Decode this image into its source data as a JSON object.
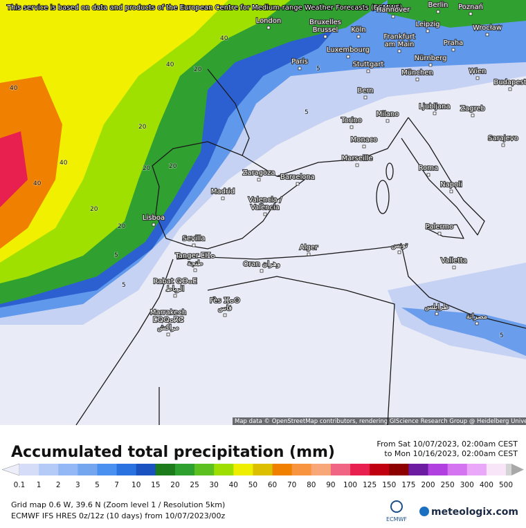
{
  "notice": "This service is based on data and products of the European Centre for Medium-range Weather Forecasts (ECMWF)",
  "attribution": "Map data © OpenStreetMap contributors, rendering GIScience Research Group @ Heidelberg University",
  "cities": [
    [
      "London"
    ],
    [
      "Bruxelles",
      "Brussel"
    ],
    [
      "Hannover"
    ],
    [
      "Berlin"
    ],
    [
      "Poznań"
    ],
    [
      "Köln"
    ],
    [
      "Leipzig"
    ],
    [
      "Wrocław"
    ],
    [
      "Frankfurt",
      "am Main"
    ],
    [
      "Praha"
    ],
    [
      "Luxembourg"
    ],
    [
      "Paris"
    ],
    [
      "Stuttgart"
    ],
    [
      "Nürnberg"
    ],
    [
      "München"
    ],
    [
      "Wien"
    ],
    [
      "Budapest"
    ],
    [
      "Bern"
    ],
    [
      "Milano"
    ],
    [
      "Ljubljana"
    ],
    [
      "Zagreb"
    ],
    [
      "Torino"
    ],
    [
      "Monaco"
    ],
    [
      "Sarajevo"
    ],
    [
      "Marseille"
    ],
    [
      "Zaragoza"
    ],
    [
      "Barcelona"
    ],
    [
      "Roma"
    ],
    [
      "Napoli"
    ],
    [
      "Madrid"
    ],
    [
      "Valencia /",
      "València"
    ],
    [
      "Lisboa"
    ],
    [
      "Palermo"
    ],
    [
      "Sevilla"
    ],
    [
      "Tanger ⵟⵏⵊⴰ",
      "طنجة"
    ],
    [
      "Oran وهران"
    ],
    [
      "Alger"
    ],
    [
      "تونس"
    ],
    [
      "Valletta"
    ],
    [
      "Rabat ⵕⴱⴰⵟ",
      "الرباط"
    ],
    [
      "Fès ⴼⴰⵙ",
      "فاس"
    ],
    [
      "Marrakech",
      "ⵎⵕⵕⴰⴽⵛ",
      "مراكش"
    ],
    [
      "طرابلس"
    ],
    [
      "مصراتة"
    ]
  ],
  "contour_labels": [
    "40",
    "20",
    "40",
    "5",
    "40",
    "20",
    "20",
    "40",
    "20",
    "5",
    "20",
    "40",
    "5",
    "20",
    "5",
    "5"
  ],
  "title": "Accumulated total precipitation (mm)",
  "period": {
    "from": "From Sat 10/07/2023, 02:00am CEST",
    "to": "to Mon 10/16/2023, 02:00am CEST"
  },
  "legend": {
    "ticks": [
      0.1,
      1,
      2,
      3,
      5,
      7,
      10,
      15,
      20,
      25,
      30,
      40,
      50,
      60,
      70,
      80,
      90,
      100,
      125,
      150,
      175,
      200,
      250,
      300,
      400,
      500
    ],
    "colors": [
      "#eceef9",
      "#d4dcf8",
      "#b4cbf8",
      "#94b8f6",
      "#74a6f0",
      "#4a90f0",
      "#2a72e0",
      "#1a52c0",
      "#1c7c1c",
      "#2ea02e",
      "#5cc020",
      "#9ede00",
      "#eeee00",
      "#dcc000",
      "#f08000",
      "#f89440",
      "#f8a878",
      "#f06484",
      "#e82050",
      "#c00010",
      "#8c0000",
      "#6c1ca0",
      "#b040e0",
      "#d474f0",
      "#eaa8f8",
      "#f8e6f8",
      "#d4d4d4",
      "#a8a8a8"
    ]
  },
  "info": [
    "Grid map 0.6 W, 39.6 N (Zoom level 1 / Resolution 5km)",
    "ECMWF IFS HRES 0z/12z (10 days) from 10/07/2023/00z"
  ],
  "logos": {
    "ecmwf": "ECMWF",
    "meteologix": "meteologix.com"
  }
}
